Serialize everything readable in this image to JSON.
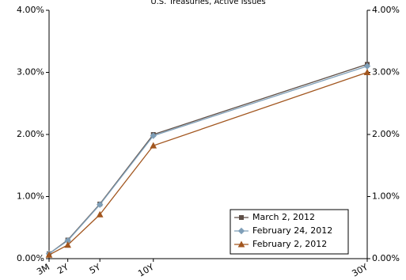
{
  "chart_data": {
    "type": "line",
    "title": "U.S. Treasuries, Active Issues",
    "x": [
      0.25,
      2,
      5,
      10,
      30
    ],
    "xlim": [
      0.25,
      30
    ],
    "xticks": [
      {
        "value": 0.25,
        "label": "3M"
      },
      {
        "value": 2,
        "label": "2Y"
      },
      {
        "value": 5,
        "label": "5Y"
      },
      {
        "value": 10,
        "label": "10Y"
      },
      {
        "value": 30,
        "label": "30Y"
      }
    ],
    "ylim": [
      0,
      4
    ],
    "yticks": [
      {
        "value": 0,
        "label": "0.00%"
      },
      {
        "value": 1,
        "label": "1.00%"
      },
      {
        "value": 2,
        "label": "2.00%"
      },
      {
        "value": 3,
        "label": "3.00%"
      },
      {
        "value": 4,
        "label": "4.00%"
      }
    ],
    "y2lim": [
      0,
      4
    ],
    "y2ticks": [
      {
        "value": 0,
        "label": "0.00%"
      },
      {
        "value": 1,
        "label": "1.00%"
      },
      {
        "value": 2,
        "label": "2.00%"
      },
      {
        "value": 3,
        "label": "3.00%"
      },
      {
        "value": 4,
        "label": "4.00%"
      }
    ],
    "legend": "lower right",
    "series": [
      {
        "name": "March 2, 2012",
        "color": "#5e4f47",
        "marker": "square",
        "values": [
          0.08,
          0.3,
          0.88,
          2.0,
          3.13
        ]
      },
      {
        "name": "February 24, 2012",
        "color": "#7f9fb8",
        "marker": "diamond",
        "values": [
          0.08,
          0.29,
          0.87,
          1.98,
          3.1
        ]
      },
      {
        "name": "February 2, 2012",
        "color": "#a2561f",
        "marker": "triangle",
        "values": [
          0.06,
          0.22,
          0.71,
          1.82,
          3.0
        ]
      }
    ]
  }
}
